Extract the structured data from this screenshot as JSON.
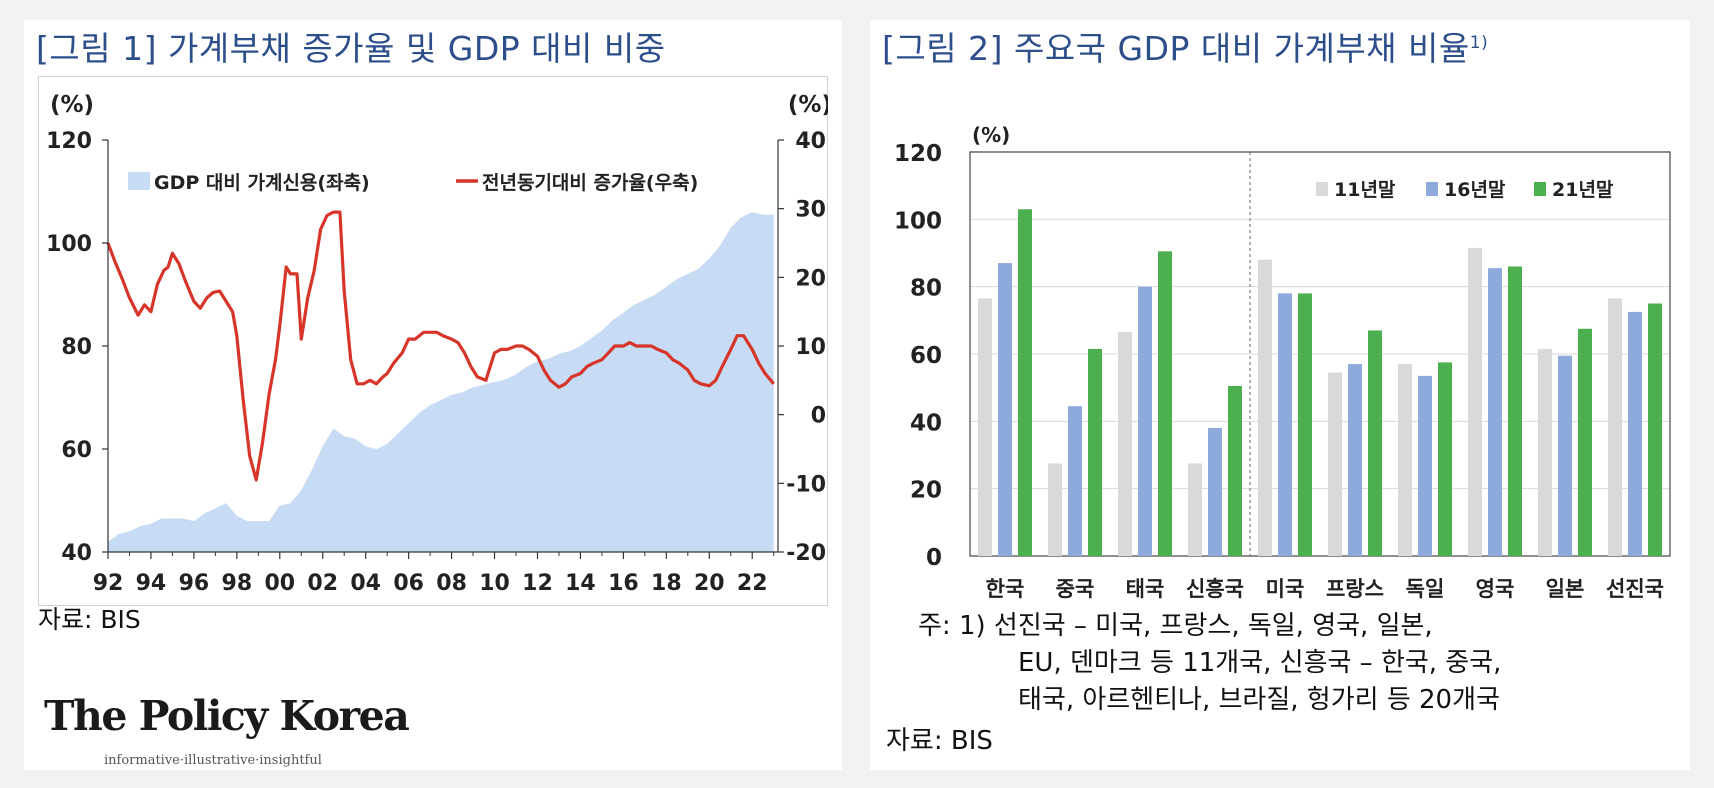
{
  "panel1": {
    "title": "[그림 1] 가계부채 증가율 및 GDP 대비 비중",
    "source": "자료: BIS"
  },
  "panel2": {
    "title": "[그림 2] 주요국 GDP 대비 가계부채 비율",
    "title_sup": "1)",
    "note_lines": [
      "주: 1) 선진국 – 미국, 프랑스, 독일, 영국, 일본,",
      "EU, 덴마크 등 11개국, 신흥국 – 한국, 중국,",
      "태국, 아르헨티나, 브라질, 헝가리 등 20개국"
    ],
    "source": "자료: BIS"
  },
  "logo": {
    "name": "The Policy Korea",
    "tagline": "informative·illustrative·insightful"
  },
  "chart_data": [
    {
      "type": "area+line",
      "y_unit_left": "(%)",
      "y_unit_right": "(%)",
      "ylim_left": [
        40,
        120
      ],
      "ylim_right": [
        -20,
        40
      ],
      "yticks_left": [
        "40",
        "60",
        "80",
        "100",
        "120"
      ],
      "yticks_right": [
        "-20",
        "-10",
        "0",
        "10",
        "20",
        "30",
        "40"
      ],
      "xlim": [
        1992,
        2023.2
      ],
      "xticks": [
        "92",
        "94",
        "96",
        "98",
        "00",
        "02",
        "04",
        "06",
        "08",
        "10",
        "12",
        "14",
        "16",
        "18",
        "20",
        "22"
      ],
      "grid": false,
      "legend_position": "top",
      "series": [
        {
          "name": "GDP 대비 가계신용(좌축)",
          "type": "area",
          "axis": "left",
          "color": "#c8dbf4",
          "x": [
            1992,
            1992.5,
            1993,
            1993.5,
            1994,
            1994.5,
            1995,
            1995.5,
            1996,
            1996.5,
            1997,
            1997.5,
            1998,
            1998.5,
            1999,
            1999.5,
            2000,
            2000.5,
            2001,
            2001.5,
            2002,
            2002.5,
            2003,
            2003.5,
            2004,
            2004.5,
            2005,
            2005.5,
            2006,
            2006.5,
            2007,
            2007.5,
            2008,
            2008.5,
            2009,
            2009.5,
            2010,
            2010.5,
            2011,
            2011.5,
            2012,
            2012.5,
            2013,
            2013.5,
            2014,
            2014.5,
            2015,
            2015.5,
            2016,
            2016.5,
            2017,
            2017.5,
            2018,
            2018.5,
            2019,
            2019.5,
            2020,
            2020.5,
            2021,
            2021.5,
            2022,
            2022.5,
            2023
          ],
          "values": [
            42,
            43.5,
            44,
            45,
            45.5,
            46.5,
            46.5,
            46.5,
            46,
            47.5,
            48.5,
            49.5,
            47,
            46,
            46,
            46,
            49,
            49.5,
            52,
            56,
            60.5,
            64,
            62.5,
            62,
            60.5,
            60,
            61,
            63,
            65,
            67,
            68.5,
            69.5,
            70.5,
            71,
            72,
            72.5,
            73,
            73.5,
            74.5,
            76,
            77,
            77.5,
            78.5,
            79,
            80,
            81.5,
            83,
            85,
            86.5,
            88,
            89,
            90,
            91.5,
            93,
            94,
            95,
            97,
            99.5,
            103,
            105,
            106,
            105.5,
            105.5
          ]
        },
        {
          "name": "전년동기대비 증가율(우축)",
          "type": "line",
          "axis": "right",
          "color": "#d7342a",
          "x": [
            1992,
            1992.3,
            1992.7,
            1993,
            1993.4,
            1993.7,
            1994,
            1994.3,
            1994.6,
            1994.8,
            1995,
            1995.3,
            1995.6,
            1996,
            1996.3,
            1996.6,
            1996.9,
            1997.2,
            1997.5,
            1997.8,
            1998,
            1998.3,
            1998.6,
            1998.9,
            1999.2,
            1999.5,
            1999.8,
            2000,
            2000.3,
            2000.5,
            2000.8,
            2001,
            2001.3,
            2001.6,
            2001.9,
            2002.2,
            2002.5,
            2002.8,
            2003,
            2003.3,
            2003.6,
            2003.9,
            2004.2,
            2004.5,
            2004.8,
            2005,
            2005.3,
            2005.7,
            2006,
            2006.3,
            2006.7,
            2007,
            2007.3,
            2007.6,
            2008,
            2008.3,
            2008.6,
            2008.9,
            2009.2,
            2009.6,
            2010,
            2010.3,
            2010.6,
            2011,
            2011.3,
            2011.6,
            2012,
            2012.3,
            2012.6,
            2013,
            2013.3,
            2013.6,
            2014,
            2014.3,
            2014.6,
            2015,
            2015.3,
            2015.6,
            2016,
            2016.3,
            2016.6,
            2017,
            2017.3,
            2017.6,
            2018,
            2018.3,
            2018.6,
            2019,
            2019.3,
            2019.6,
            2020,
            2020.3,
            2020.6,
            2021,
            2021.3,
            2021.6,
            2022,
            2022.3,
            2022.6,
            2023
          ],
          "values": [
            25,
            22.5,
            19.5,
            17,
            14.5,
            16,
            15,
            19,
            21,
            21.5,
            23.5,
            22,
            19.5,
            16.5,
            15.5,
            17,
            17.8,
            18,
            16.5,
            15,
            11.5,
            2,
            -6,
            -9.5,
            -4,
            3,
            8,
            13,
            21.5,
            20.5,
            20.5,
            11,
            17,
            21,
            27,
            29,
            29.5,
            29.5,
            18,
            8,
            4.5,
            4.5,
            5,
            4.5,
            5.5,
            6,
            7.5,
            9,
            11,
            11,
            12,
            12,
            12,
            11.5,
            11,
            10.5,
            9,
            7,
            5.5,
            5,
            9,
            9.5,
            9.5,
            10,
            10,
            9.5,
            8.5,
            6.5,
            5,
            4,
            4.5,
            5.5,
            6,
            7,
            7.5,
            8,
            9,
            10,
            10,
            10.5,
            10,
            10,
            10,
            9.5,
            9,
            8,
            7.5,
            6.5,
            5,
            4.5,
            4.2,
            5,
            7,
            9.5,
            11.5,
            11.5,
            9.5,
            7.5,
            6,
            4.5
          ]
        }
      ]
    },
    {
      "type": "bar",
      "y_unit": "(%)",
      "ylim": [
        0,
        120
      ],
      "yticks": [
        "0",
        "20",
        "40",
        "60",
        "80",
        "100",
        "120"
      ],
      "categories": [
        "한국",
        "중국",
        "태국",
        "신흥국",
        "미국",
        "프랑스",
        "독일",
        "영국",
        "일본",
        "선진국"
      ],
      "grid": true,
      "legend_position": "top-right",
      "series": [
        {
          "name": "11년말",
          "color": "#d9d9d9",
          "values": [
            76.5,
            27.5,
            66.5,
            27.5,
            88,
            54.5,
            57,
            91.5,
            61.5,
            76.5
          ]
        },
        {
          "name": "16년말",
          "color": "#8ea9dc",
          "values": [
            87,
            44.5,
            80,
            38,
            78,
            57,
            53.5,
            85.5,
            59.5,
            72.5
          ]
        },
        {
          "name": "21년말",
          "color": "#4caf50",
          "values": [
            103,
            61.5,
            90.5,
            50.5,
            78,
            67,
            57.5,
            86,
            67.5,
            75
          ]
        }
      ]
    }
  ]
}
